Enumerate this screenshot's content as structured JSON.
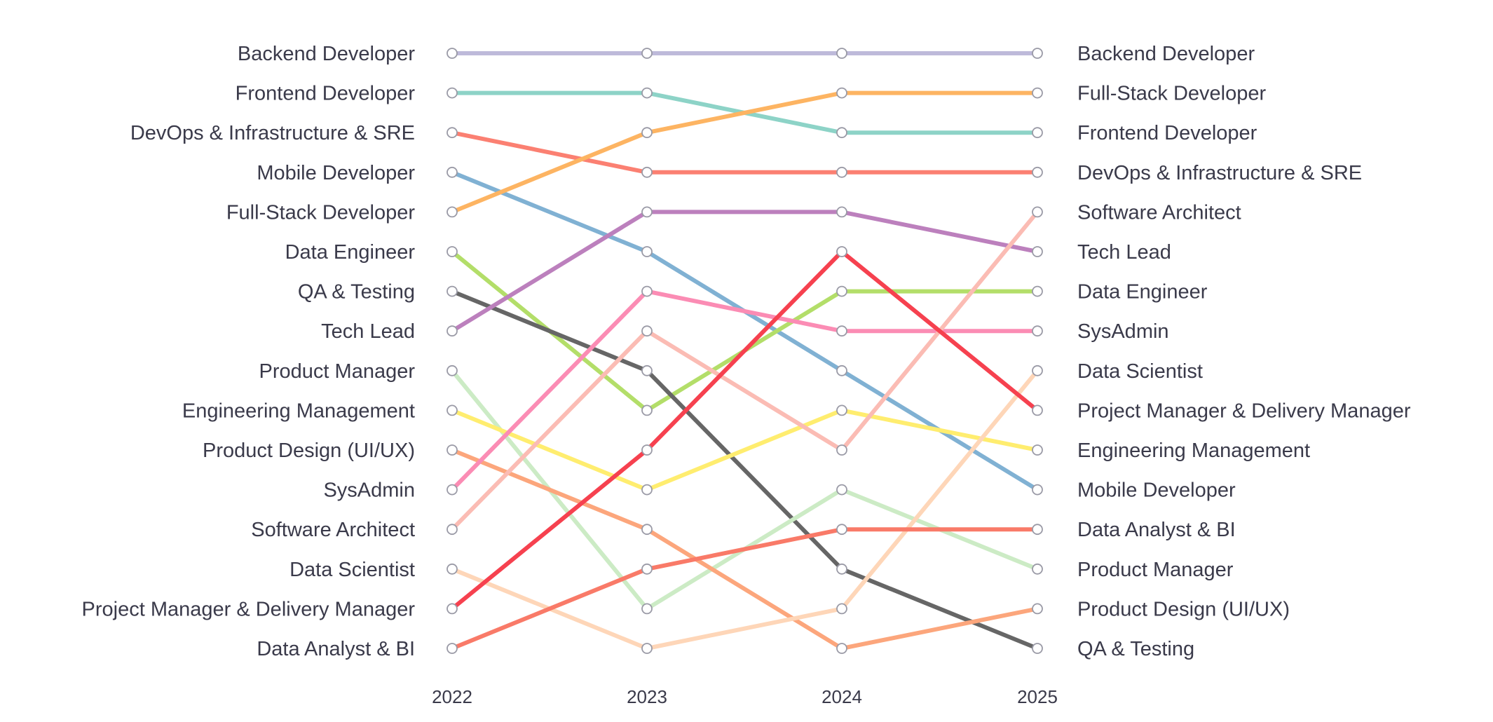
{
  "chart_data": {
    "type": "bump",
    "title": "",
    "xlabel": "",
    "ylabel": "",
    "x": [
      "2022",
      "2023",
      "2024",
      "2025"
    ],
    "rank_direction": "1 at top",
    "grid": false,
    "legend": "none (labels at both ends)",
    "series": [
      {
        "name": "Backend Developer",
        "color": "#bebada",
        "ranks": [
          1,
          1,
          1,
          1
        ]
      },
      {
        "name": "Frontend Developer",
        "color": "#8dd3c7",
        "ranks": [
          2,
          2,
          3,
          3
        ]
      },
      {
        "name": "DevOps & Infrastructure & SRE",
        "color": "#fb8072",
        "ranks": [
          3,
          4,
          4,
          4
        ]
      },
      {
        "name": "Mobile Developer",
        "color": "#80b1d3",
        "ranks": [
          4,
          6,
          9,
          12
        ]
      },
      {
        "name": "Full-Stack Developer",
        "color": "#fdb462",
        "ranks": [
          5,
          3,
          2,
          2
        ]
      },
      {
        "name": "Data Engineer",
        "color": "#b3de69",
        "ranks": [
          6,
          10,
          7,
          7
        ]
      },
      {
        "name": "QA & Testing",
        "color": "#666666",
        "ranks": [
          7,
          9,
          14,
          16
        ]
      },
      {
        "name": "Tech Lead",
        "color": "#bc80bd",
        "ranks": [
          8,
          5,
          5,
          6
        ]
      },
      {
        "name": "Product Manager",
        "color": "#ccebc5",
        "ranks": [
          9,
          15,
          12,
          14
        ]
      },
      {
        "name": "Engineering Management",
        "color": "#ffed6f",
        "ranks": [
          10,
          12,
          10,
          11
        ]
      },
      {
        "name": "Product Design (UI/UX)",
        "color": "#fca67c",
        "ranks": [
          11,
          13,
          16,
          15
        ]
      },
      {
        "name": "SysAdmin",
        "color": "#fb8cb4",
        "ranks": [
          12,
          7,
          8,
          8
        ]
      },
      {
        "name": "Software Architect",
        "color": "#fbbcb4",
        "ranks": [
          13,
          8,
          11,
          5
        ]
      },
      {
        "name": "Data Scientist",
        "color": "#fed6b8",
        "ranks": [
          14,
          16,
          15,
          9
        ]
      },
      {
        "name": "Project Manager & Delivery Manager",
        "color": "#f6414f",
        "ranks": [
          15,
          11,
          6,
          10
        ]
      },
      {
        "name": "Data Analyst & BI",
        "color": "#f97a68",
        "ranks": [
          16,
          14,
          13,
          13
        ]
      }
    ],
    "marker": {
      "fill": "#ffffff",
      "stroke": "#9a9aa6"
    }
  }
}
